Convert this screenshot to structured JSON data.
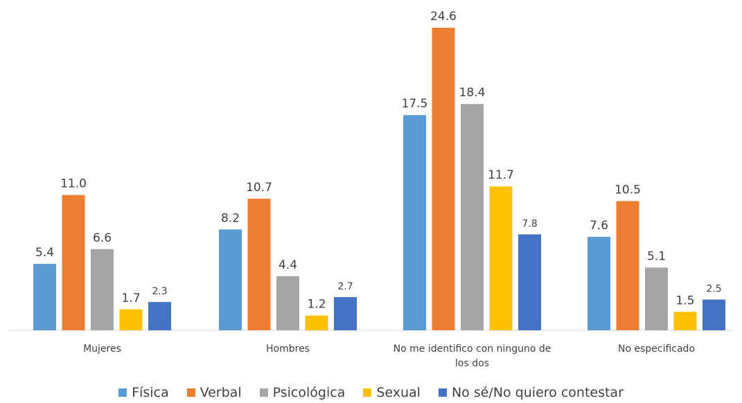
{
  "chart_data": {
    "type": "bar",
    "categories": [
      [
        "Mujeres"
      ],
      [
        "Hombres"
      ],
      [
        "No me identifico con ninguno de",
        "los dos"
      ],
      [
        "No especificado"
      ]
    ],
    "series": [
      {
        "name": "Física",
        "color": "#5B9BD5",
        "values": [
          5.4,
          8.2,
          17.5,
          7.6
        ],
        "labels": [
          "5.4",
          "8.2",
          "17.5",
          "7.6"
        ]
      },
      {
        "name": "Verbal",
        "color": "#ED7D31",
        "values": [
          11.0,
          10.7,
          24.6,
          10.5
        ],
        "labels": [
          "11.0",
          "10.7",
          "24.6",
          "10.5"
        ]
      },
      {
        "name": "Psicológica",
        "color": "#A5A5A5",
        "values": [
          6.6,
          4.4,
          18.4,
          5.1
        ],
        "labels": [
          "6.6",
          "4.4",
          "18.4",
          "5.1"
        ]
      },
      {
        "name": "Sexual",
        "color": "#FFC000",
        "values": [
          1.7,
          1.2,
          11.7,
          1.5
        ],
        "labels": [
          "1.7",
          "1.2",
          "11.7",
          "1.5"
        ]
      },
      {
        "name": "No sé/No quiero contestar",
        "color": "#4472C4",
        "values": [
          2.3,
          2.7,
          7.8,
          2.5
        ],
        "labels": [
          "2.3",
          "2.7",
          "7.8",
          "2.5"
        ]
      }
    ],
    "ylim": [
      0,
      25
    ],
    "grid": false,
    "legend": "bottom"
  }
}
